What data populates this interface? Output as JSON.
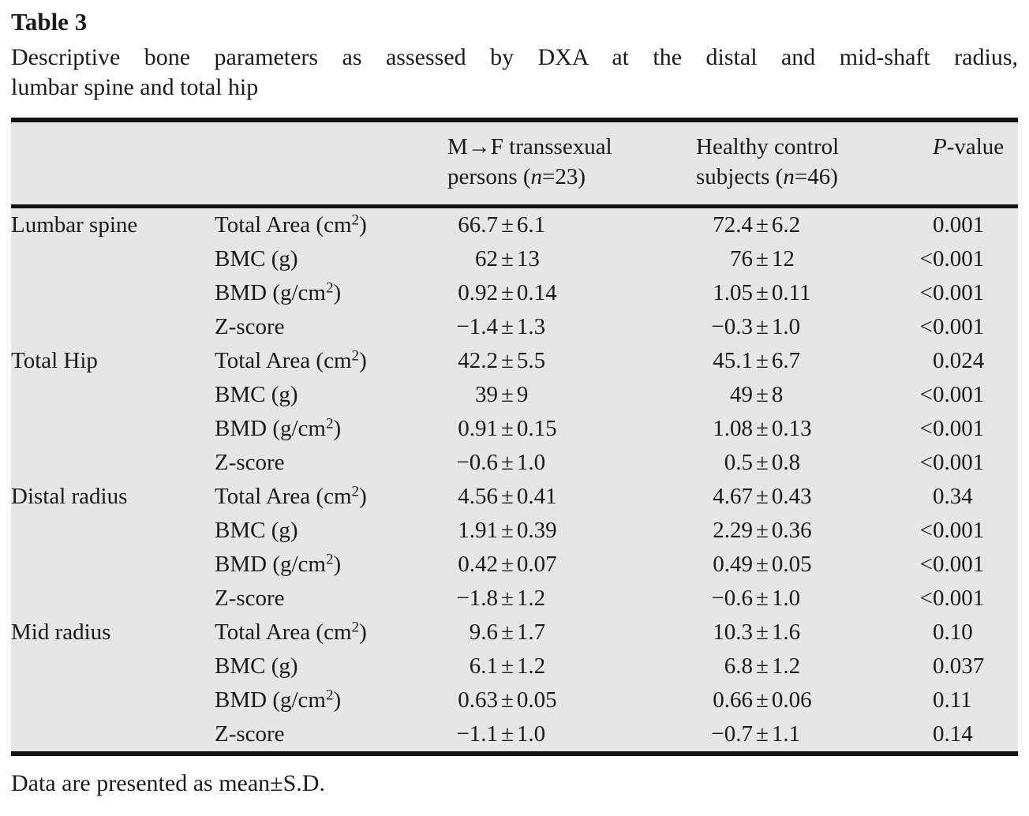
{
  "title": "Table 3",
  "caption_line1": "Descriptive bone parameters as assessed by DXA at the distal and mid-shaft radius,",
  "caption_line2": "lumbar spine and total hip",
  "footnote": "Data are presented as mean±S.D.",
  "symbols": {
    "plus_minus": "±"
  },
  "columns": {
    "group1_line1": "M→F transsexual",
    "group1_line2_pre": "persons (",
    "group1_n": "n",
    "group1_line2_post": "=23)",
    "group2_line1": "Healthy control",
    "group2_line2_pre": "subjects (",
    "group2_n": "n",
    "group2_line2_post": "=46)",
    "p_var": "P",
    "p_rest": "-value"
  },
  "colors": {
    "table_bg": "#e5e6e6",
    "rule": "#121212",
    "text": "#1a1a1a"
  },
  "sections": [
    {
      "region": "Lumbar spine",
      "rows": [
        {
          "param_pre": "Total Area (cm",
          "param_sup": "2",
          "param_post": ")",
          "g1_mean": "66.7",
          "g1_sd": "6.1",
          "g2_mean": "72.4",
          "g2_sd": "6.2",
          "p_prefix": "",
          "p_value": "0.001"
        },
        {
          "param_pre": "BMC (g)",
          "param_sup": "",
          "param_post": "",
          "g1_mean": "62",
          "g1_sd": "13",
          "g2_mean": "76",
          "g2_sd": "12",
          "p_prefix": "<",
          "p_value": "0.001"
        },
        {
          "param_pre": "BMD (g/cm",
          "param_sup": "2",
          "param_post": ")",
          "g1_mean": "0.92",
          "g1_sd": "0.14",
          "g2_mean": "1.05",
          "g2_sd": "0.11",
          "p_prefix": "<",
          "p_value": "0.001"
        },
        {
          "param_pre": "Z-score",
          "param_sup": "",
          "param_post": "",
          "g1_mean": "−1.4",
          "g1_sd": "1.3",
          "g2_mean": "−0.3",
          "g2_sd": "1.0",
          "p_prefix": "<",
          "p_value": "0.001"
        }
      ]
    },
    {
      "region": "Total Hip",
      "rows": [
        {
          "param_pre": "Total Area (cm",
          "param_sup": "2",
          "param_post": ")",
          "g1_mean": "42.2",
          "g1_sd": "5.5",
          "g2_mean": "45.1",
          "g2_sd": "6.7",
          "p_prefix": "",
          "p_value": "0.024"
        },
        {
          "param_pre": "BMC (g)",
          "param_sup": "",
          "param_post": "",
          "g1_mean": "39",
          "g1_sd": "9",
          "g2_mean": "49",
          "g2_sd": "8",
          "p_prefix": "<",
          "p_value": "0.001"
        },
        {
          "param_pre": "BMD (g/cm",
          "param_sup": "2",
          "param_post": ")",
          "g1_mean": "0.91",
          "g1_sd": "0.15",
          "g2_mean": "1.08",
          "g2_sd": "0.13",
          "p_prefix": "<",
          "p_value": "0.001"
        },
        {
          "param_pre": "Z-score",
          "param_sup": "",
          "param_post": "",
          "g1_mean": "−0.6",
          "g1_sd": "1.0",
          "g2_mean": "0.5",
          "g2_sd": "0.8",
          "p_prefix": "<",
          "p_value": "0.001"
        }
      ]
    },
    {
      "region": "Distal radius",
      "rows": [
        {
          "param_pre": "Total Area (cm",
          "param_sup": "2",
          "param_post": ")",
          "g1_mean": "4.56",
          "g1_sd": "0.41",
          "g2_mean": "4.67",
          "g2_sd": "0.43",
          "p_prefix": "",
          "p_value": "0.34"
        },
        {
          "param_pre": "BMC (g)",
          "param_sup": "",
          "param_post": "",
          "g1_mean": "1.91",
          "g1_sd": "0.39",
          "g2_mean": "2.29",
          "g2_sd": "0.36",
          "p_prefix": "<",
          "p_value": "0.001"
        },
        {
          "param_pre": "BMD (g/cm",
          "param_sup": "2",
          "param_post": ")",
          "g1_mean": "0.42",
          "g1_sd": "0.07",
          "g2_mean": "0.49",
          "g2_sd": "0.05",
          "p_prefix": "<",
          "p_value": "0.001"
        },
        {
          "param_pre": "Z-score",
          "param_sup": "",
          "param_post": "",
          "g1_mean": "−1.8",
          "g1_sd": "1.2",
          "g2_mean": "−0.6",
          "g2_sd": "1.0",
          "p_prefix": "<",
          "p_value": "0.001"
        }
      ]
    },
    {
      "region": "Mid radius",
      "rows": [
        {
          "param_pre": "Total Area (cm",
          "param_sup": "2",
          "param_post": ")",
          "g1_mean": "9.6",
          "g1_sd": "1.7",
          "g2_mean": "10.3",
          "g2_sd": "1.6",
          "p_prefix": "",
          "p_value": "0.10"
        },
        {
          "param_pre": "BMC (g)",
          "param_sup": "",
          "param_post": "",
          "g1_mean": "6.1",
          "g1_sd": "1.2",
          "g2_mean": "6.8",
          "g2_sd": "1.2",
          "p_prefix": "",
          "p_value": "0.037"
        },
        {
          "param_pre": "BMD (g/cm",
          "param_sup": "2",
          "param_post": ")",
          "g1_mean": "0.63",
          "g1_sd": "0.05",
          "g2_mean": "0.66",
          "g2_sd": "0.06",
          "p_prefix": "",
          "p_value": "0.11"
        },
        {
          "param_pre": "Z-score",
          "param_sup": "",
          "param_post": "",
          "g1_mean": "−1.1",
          "g1_sd": "1.0",
          "g2_mean": "−0.7",
          "g2_sd": "1.1",
          "p_prefix": "",
          "p_value": "0.14"
        }
      ]
    }
  ]
}
